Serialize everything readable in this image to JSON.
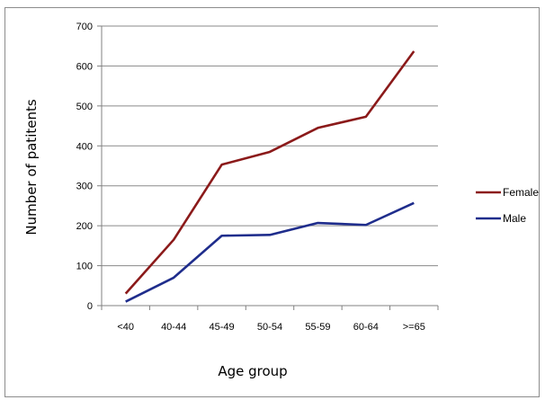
{
  "chart_data": {
    "type": "line",
    "title": "",
    "xlabel": "Age group",
    "ylabel": "Number of patitents",
    "categories": [
      "<40",
      "40-44",
      "45-49",
      "50-54",
      "55-59",
      "60-64",
      ">=65"
    ],
    "ylim": [
      0,
      700
    ],
    "yticks": [
      0,
      100,
      200,
      300,
      400,
      500,
      600,
      700
    ],
    "grid": "horizontal",
    "legend": "right",
    "series": [
      {
        "name": "Female",
        "color": "#8b1a1a",
        "values": [
          30,
          165,
          353,
          385,
          445,
          473,
          637
        ]
      },
      {
        "name": "Male",
        "color": "#1f2d8c",
        "values": [
          10,
          70,
          175,
          177,
          207,
          202,
          257
        ]
      }
    ]
  }
}
